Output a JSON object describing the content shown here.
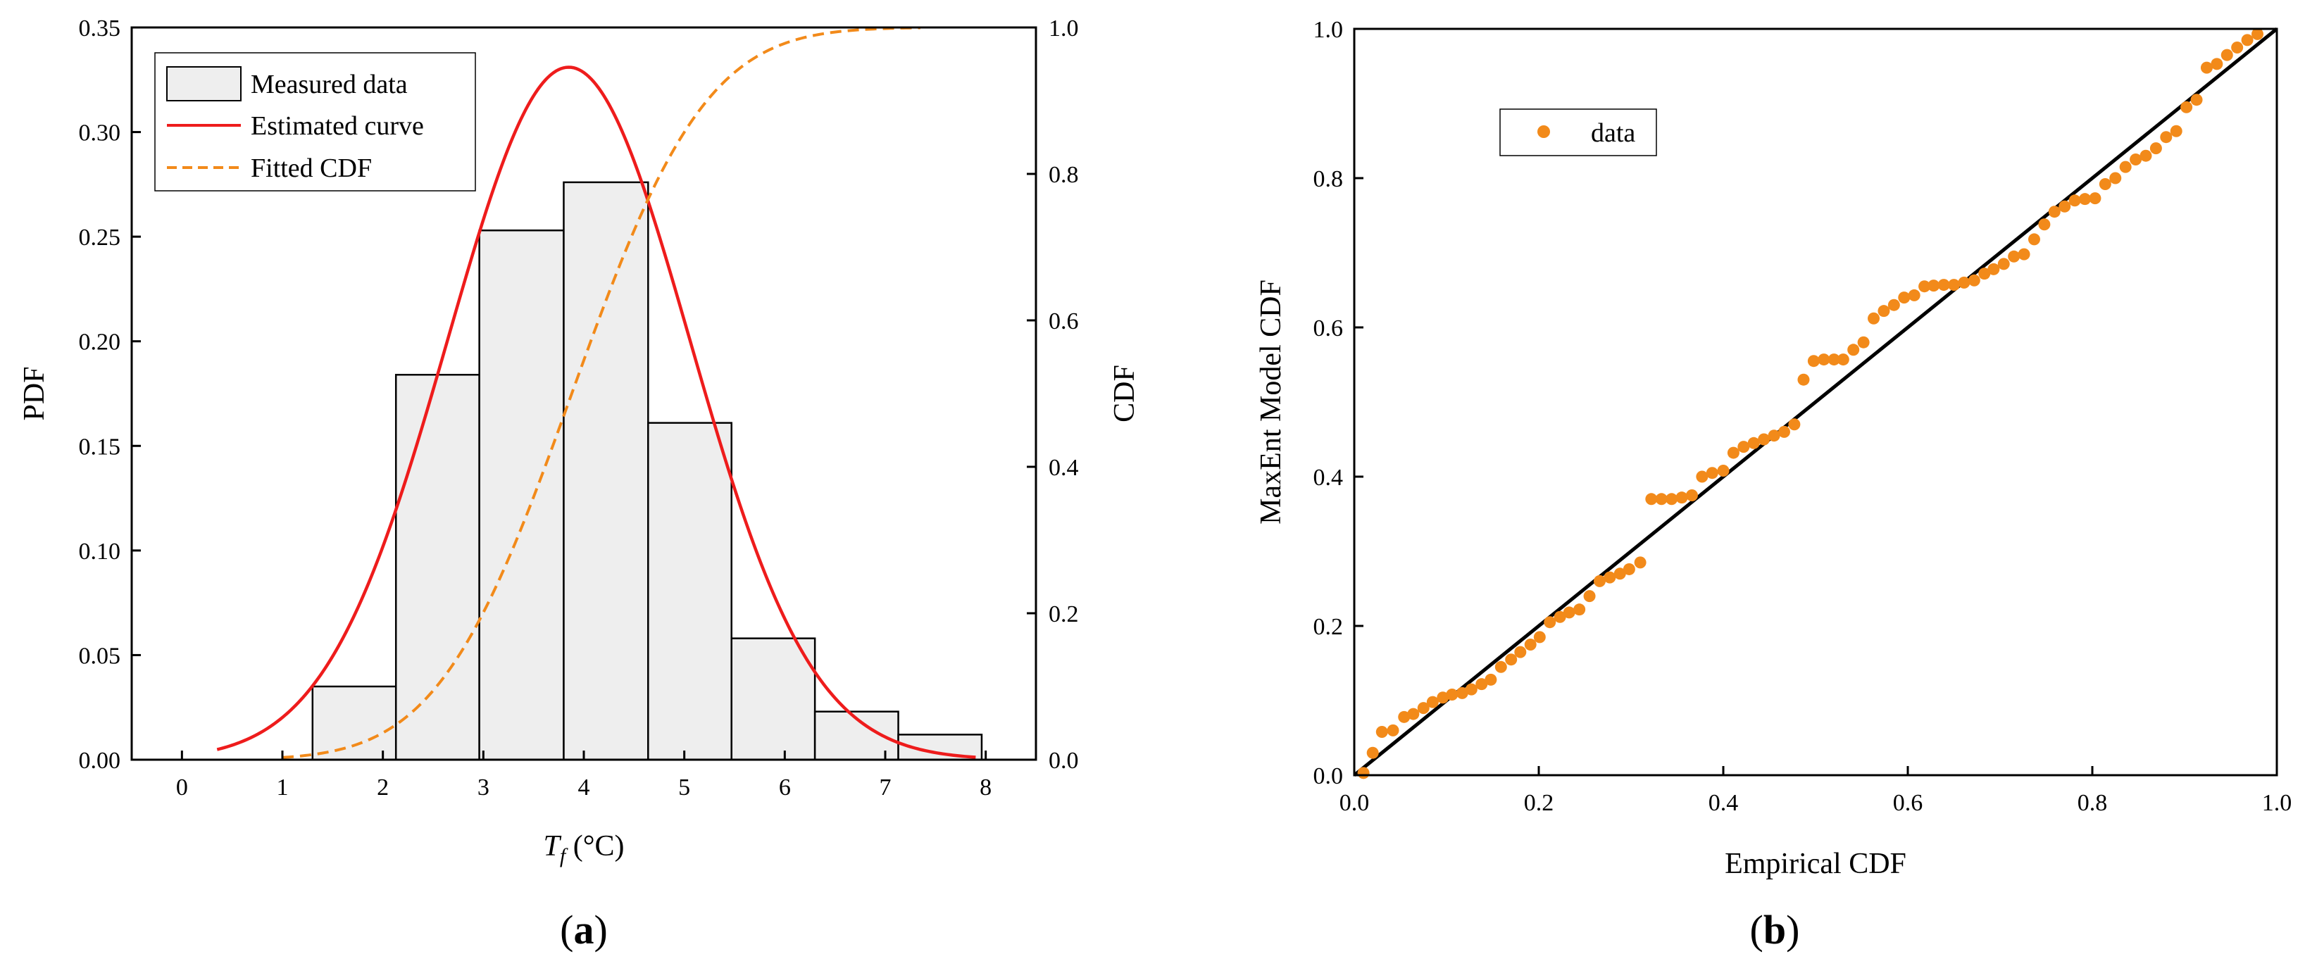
{
  "chart_data": [
    {
      "panel_label_open": "(",
      "panel_label_letter": "a",
      "panel_label_close": ")",
      "type": "bar",
      "title": "",
      "xlabel_symbol": "T",
      "xlabel_subscript": "f",
      "xlabel_unit": " (°C)",
      "ylabel": "PDF",
      "y2label": "CDF",
      "xlim": [
        -0.5,
        8.5
      ],
      "ylim": [
        0,
        0.35
      ],
      "y2lim": [
        0,
        1.0
      ],
      "xticks": [
        0,
        1,
        2,
        3,
        4,
        5,
        6,
        7,
        8
      ],
      "xtick_labels": [
        "0",
        "1",
        "2",
        "3",
        "4",
        "5",
        "6",
        "7",
        "8"
      ],
      "yticks": [
        0,
        0.05,
        0.1,
        0.15,
        0.2,
        0.25,
        0.3,
        0.35
      ],
      "ytick_labels": [
        "0.00",
        "0.05",
        "0.10",
        "0.15",
        "0.20",
        "0.25",
        "0.30",
        "0.35"
      ],
      "y2ticks": [
        0,
        0.2,
        0.4,
        0.6,
        0.8,
        1.0
      ],
      "y2tick_labels": [
        "0.0",
        "0.2",
        "0.4",
        "0.6",
        "0.8",
        "1.0"
      ],
      "legend_position": "top-left",
      "histogram": {
        "name": "Measured data",
        "color": "#eeeeee",
        "edge_color": "#000000",
        "bin_edges": [
          1.3,
          2.13,
          2.96,
          3.8,
          4.64,
          5.47,
          6.3,
          7.13,
          7.96
        ],
        "values": [
          0.035,
          0.184,
          0.253,
          0.276,
          0.161,
          0.058,
          0.023,
          0.012
        ]
      },
      "pdf_curve": {
        "name": "Estimated curve",
        "color": "#ee1c1c",
        "axis": "left",
        "mean": 3.85,
        "std": 1.205,
        "peak": 0.331,
        "x_range": [
          0.35,
          7.9
        ]
      },
      "cdf_curve": {
        "name": "Fitted CDF",
        "color": "#f28a1a",
        "style": "dashed",
        "axis": "right",
        "mean": 3.88,
        "std": 1.05,
        "x_range": [
          1.0,
          7.35
        ]
      }
    },
    {
      "panel_label_open": "(",
      "panel_label_letter": "b",
      "panel_label_close": ")",
      "type": "scatter",
      "title": "",
      "xlabel": "Empirical CDF",
      "ylabel": "MaxEnt Model CDF",
      "xlim": [
        0,
        1
      ],
      "ylim": [
        0,
        1
      ],
      "xticks": [
        0,
        0.2,
        0.4,
        0.6,
        0.8,
        1.0
      ],
      "xtick_labels": [
        "0.0",
        "0.2",
        "0.4",
        "0.6",
        "0.8",
        "1.0"
      ],
      "yticks": [
        0,
        0.2,
        0.4,
        0.6,
        0.8,
        1.0
      ],
      "ytick_labels": [
        "0.0",
        "0.2",
        "0.4",
        "0.6",
        "0.8",
        "1.0"
      ],
      "legend_position": "top-left",
      "reference_line": {
        "x": [
          0,
          1
        ],
        "y": [
          0,
          1
        ],
        "color": "#000000"
      },
      "series": [
        {
          "name": "data",
          "color": "#f28a1a",
          "points": [
            [
              0.01,
              0.003
            ],
            [
              0.02,
              0.03
            ],
            [
              0.03,
              0.058
            ],
            [
              0.042,
              0.06
            ],
            [
              0.054,
              0.078
            ],
            [
              0.064,
              0.082
            ],
            [
              0.075,
              0.09
            ],
            [
              0.085,
              0.098
            ],
            [
              0.096,
              0.104
            ],
            [
              0.106,
              0.108
            ],
            [
              0.117,
              0.11
            ],
            [
              0.127,
              0.115
            ],
            [
              0.138,
              0.122
            ],
            [
              0.148,
              0.128
            ],
            [
              0.159,
              0.145
            ],
            [
              0.17,
              0.155
            ],
            [
              0.18,
              0.165
            ],
            [
              0.191,
              0.175
            ],
            [
              0.201,
              0.185
            ],
            [
              0.212,
              0.205
            ],
            [
              0.223,
              0.212
            ],
            [
              0.233,
              0.218
            ],
            [
              0.244,
              0.222
            ],
            [
              0.255,
              0.24
            ],
            [
              0.266,
              0.26
            ],
            [
              0.277,
              0.265
            ],
            [
              0.288,
              0.27
            ],
            [
              0.298,
              0.276
            ],
            [
              0.31,
              0.285
            ],
            [
              0.322,
              0.37
            ],
            [
              0.333,
              0.37
            ],
            [
              0.344,
              0.37
            ],
            [
              0.355,
              0.372
            ],
            [
              0.366,
              0.375
            ],
            [
              0.377,
              0.4
            ],
            [
              0.388,
              0.405
            ],
            [
              0.4,
              0.408
            ],
            [
              0.411,
              0.432
            ],
            [
              0.422,
              0.44
            ],
            [
              0.433,
              0.445
            ],
            [
              0.444,
              0.45
            ],
            [
              0.455,
              0.455
            ],
            [
              0.466,
              0.46
            ],
            [
              0.477,
              0.47
            ],
            [
              0.487,
              0.53
            ],
            [
              0.498,
              0.555
            ],
            [
              0.509,
              0.557
            ],
            [
              0.52,
              0.557
            ],
            [
              0.53,
              0.557
            ],
            [
              0.541,
              0.57
            ],
            [
              0.552,
              0.58
            ],
            [
              0.563,
              0.612
            ],
            [
              0.574,
              0.622
            ],
            [
              0.585,
              0.63
            ],
            [
              0.596,
              0.64
            ],
            [
              0.607,
              0.643
            ],
            [
              0.618,
              0.655
            ],
            [
              0.628,
              0.656
            ],
            [
              0.639,
              0.657
            ],
            [
              0.65,
              0.657
            ],
            [
              0.661,
              0.66
            ],
            [
              0.672,
              0.663
            ],
            [
              0.683,
              0.672
            ],
            [
              0.693,
              0.678
            ],
            [
              0.704,
              0.685
            ],
            [
              0.715,
              0.695
            ],
            [
              0.726,
              0.698
            ],
            [
              0.737,
              0.718
            ],
            [
              0.748,
              0.738
            ],
            [
              0.759,
              0.755
            ],
            [
              0.77,
              0.762
            ],
            [
              0.781,
              0.77
            ],
            [
              0.792,
              0.772
            ],
            [
              0.803,
              0.773
            ],
            [
              0.814,
              0.792
            ],
            [
              0.825,
              0.8
            ],
            [
              0.836,
              0.815
            ],
            [
              0.847,
              0.825
            ],
            [
              0.858,
              0.83
            ],
            [
              0.869,
              0.84
            ],
            [
              0.88,
              0.855
            ],
            [
              0.891,
              0.863
            ],
            [
              0.902,
              0.895
            ],
            [
              0.913,
              0.905
            ],
            [
              0.924,
              0.948
            ],
            [
              0.935,
              0.953
            ],
            [
              0.946,
              0.965
            ],
            [
              0.957,
              0.975
            ],
            [
              0.968,
              0.985
            ],
            [
              0.979,
              0.993
            ]
          ]
        }
      ]
    }
  ]
}
